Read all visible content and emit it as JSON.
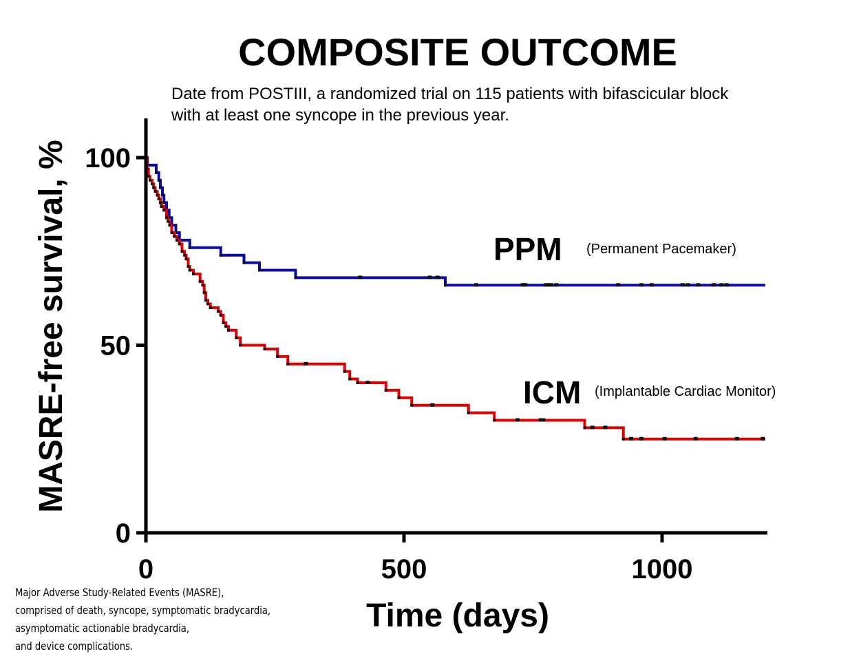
{
  "chart_data": {
    "type": "line",
    "title": "COMPOSITE OUTCOME",
    "subtitle_lines": [
      "Date from POSTIII, a randomized trial on 115 patients with bifascicular block",
      "with at least one syncope in the previous year."
    ],
    "xlabel": "Time (days)",
    "ylabel": "MASRE-free survival, %",
    "xlim": [
      0,
      1200
    ],
    "ylim": [
      0,
      110
    ],
    "xticks": [
      0,
      500,
      1000
    ],
    "yticks": [
      0,
      50,
      100
    ],
    "grid": false,
    "legend": "inline labels",
    "series": [
      {
        "name": "PPM",
        "note": "(Permanent Pacemaker)",
        "color": "#0a0aaa",
        "steps": [
          [
            0,
            100
          ],
          [
            3,
            98
          ],
          [
            20,
            96
          ],
          [
            25,
            94
          ],
          [
            28,
            92
          ],
          [
            32,
            90
          ],
          [
            35,
            88
          ],
          [
            40,
            86
          ],
          [
            45,
            84
          ],
          [
            50,
            82
          ],
          [
            58,
            80
          ],
          [
            65,
            78
          ],
          [
            85,
            76
          ],
          [
            145,
            74
          ],
          [
            190,
            72
          ],
          [
            220,
            70
          ],
          [
            290,
            68
          ],
          [
            580,
            66
          ],
          [
            1200,
            66
          ]
        ],
        "censored": [
          415,
          550,
          565,
          640,
          730,
          735,
          775,
          780,
          785,
          795,
          915,
          960,
          980,
          1040,
          1050,
          1070,
          1100,
          1115,
          1125
        ]
      },
      {
        "name": "ICM",
        "note": "(Implantable Cardiac Monitor)",
        "color": "#e00000",
        "steps": [
          [
            0,
            100
          ],
          [
            2,
            97
          ],
          [
            5,
            95
          ],
          [
            8,
            94
          ],
          [
            12,
            93
          ],
          [
            15,
            92
          ],
          [
            18,
            91
          ],
          [
            22,
            90
          ],
          [
            25,
            89
          ],
          [
            28,
            88
          ],
          [
            30,
            87
          ],
          [
            35,
            86
          ],
          [
            40,
            84
          ],
          [
            43,
            83
          ],
          [
            46,
            82
          ],
          [
            50,
            80
          ],
          [
            55,
            79
          ],
          [
            60,
            78
          ],
          [
            65,
            77
          ],
          [
            70,
            75
          ],
          [
            75,
            74
          ],
          [
            78,
            73
          ],
          [
            82,
            71
          ],
          [
            85,
            70
          ],
          [
            92,
            69
          ],
          [
            105,
            67
          ],
          [
            110,
            66
          ],
          [
            113,
            64
          ],
          [
            116,
            62
          ],
          [
            120,
            61
          ],
          [
            125,
            60
          ],
          [
            140,
            59
          ],
          [
            145,
            58
          ],
          [
            150,
            56
          ],
          [
            155,
            55
          ],
          [
            160,
            54
          ],
          [
            175,
            52
          ],
          [
            183,
            50
          ],
          [
            230,
            49
          ],
          [
            255,
            47
          ],
          [
            275,
            45
          ],
          [
            385,
            43
          ],
          [
            395,
            41
          ],
          [
            410,
            40
          ],
          [
            465,
            38
          ],
          [
            490,
            36
          ],
          [
            515,
            34
          ],
          [
            625,
            32
          ],
          [
            675,
            30
          ],
          [
            850,
            28
          ],
          [
            925,
            25
          ],
          [
            1200,
            25
          ]
        ],
        "censored": [
          310,
          430,
          555,
          720,
          765,
          770,
          865,
          890,
          940,
          960,
          1005,
          1065,
          1145,
          1195
        ]
      }
    ]
  },
  "footnote_lines": [
    "Major Adverse Study-Related Events (MASRE),",
    "comprised of death, syncope, symptomatic bradycardia,",
    "asymptomatic actionable bradycardia,",
    "and device complications."
  ]
}
